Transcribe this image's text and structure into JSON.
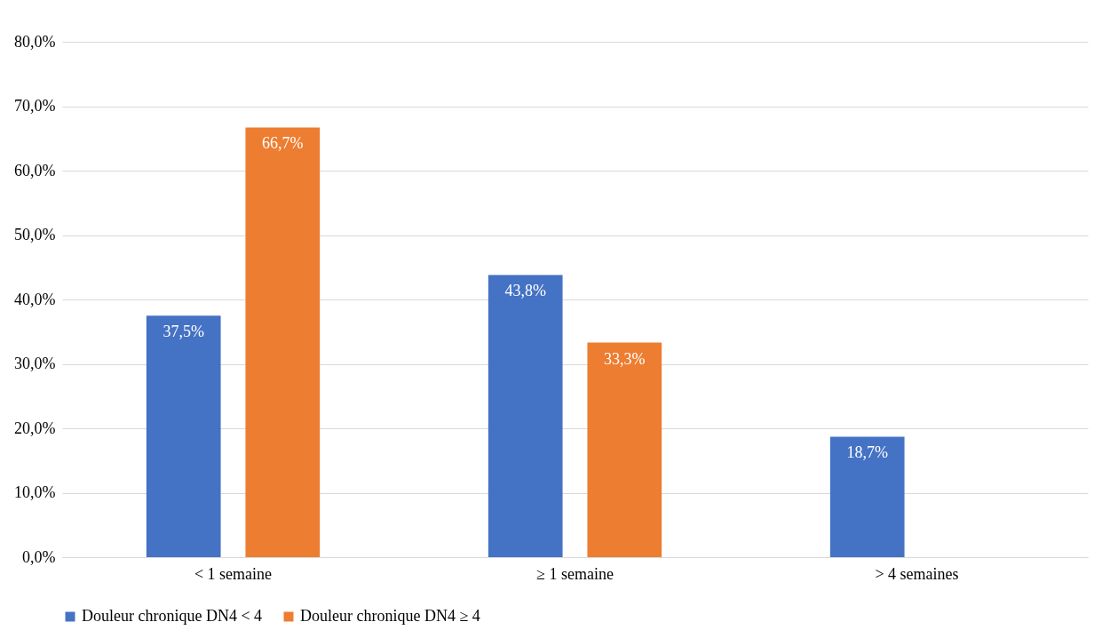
{
  "chart_data": {
    "type": "bar",
    "categories": [
      "< 1 semaine",
      "≥ 1 semaine",
      "> 4 semaines"
    ],
    "series": [
      {
        "name": "Douleur chronique DN4 < 4",
        "color": "#4472c4",
        "values": [
          37.5,
          43.8,
          18.7
        ],
        "value_labels": [
          "37,5%",
          "43,8%",
          "18,7%"
        ]
      },
      {
        "name": "Douleur chronique DN4 ≥ 4",
        "color": "#ed7d31",
        "values": [
          66.7,
          33.3,
          null
        ],
        "value_labels": [
          "66,7%",
          "33,3%",
          null
        ]
      }
    ],
    "ylim": [
      0,
      80
    ],
    "yticks": [
      {
        "value": 0,
        "label": "0,0%"
      },
      {
        "value": 10,
        "label": "10,0%"
      },
      {
        "value": 20,
        "label": "20,0%"
      },
      {
        "value": 30,
        "label": "30,0%"
      },
      {
        "value": 40,
        "label": "40,0%"
      },
      {
        "value": 50,
        "label": "50,0%"
      },
      {
        "value": 60,
        "label": "60,0%"
      },
      {
        "value": 70,
        "label": "70,0%"
      },
      {
        "value": 80,
        "label": "80,0%"
      }
    ],
    "grid": "y",
    "legend": "bottom"
  }
}
